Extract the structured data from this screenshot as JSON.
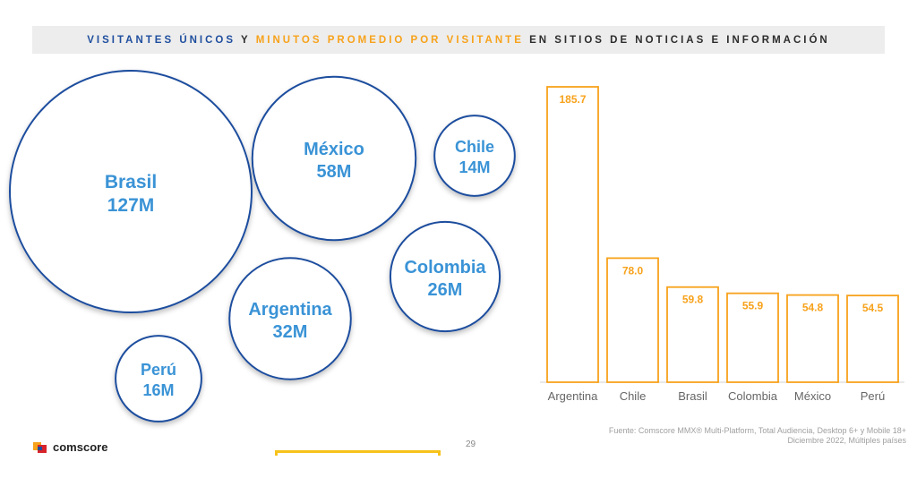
{
  "header": {
    "part1": "VISITANTES ÚNICOS",
    "part2": " Y ",
    "part3": "MINUTOS PROMEDIO POR VISITANTE",
    "part4": " EN SITIOS DE NOTICIAS E INFORMACIÓN"
  },
  "chart_data": [
    {
      "type": "bubble",
      "items": [
        {
          "label": "Brasil",
          "value_label": "127M",
          "value": 127
        },
        {
          "label": "México",
          "value_label": "58M",
          "value": 58
        },
        {
          "label": "Chile",
          "value_label": "14M",
          "value": 14
        },
        {
          "label": "Colombia",
          "value_label": "26M",
          "value": 26
        },
        {
          "label": "Argentina",
          "value_label": "32M",
          "value": 32
        },
        {
          "label": "Perú",
          "value_label": "16M",
          "value": 16
        }
      ],
      "colors": {
        "stroke": "#1f4e9e",
        "text": "#3a93d6"
      }
    },
    {
      "type": "bar",
      "categories": [
        "Argentina",
        "Chile",
        "Brasil",
        "Colombia",
        "México",
        "Perú"
      ],
      "values": [
        185.7,
        78.0,
        59.8,
        55.9,
        54.8,
        54.5
      ],
      "value_labels": [
        "185.7",
        "78.0",
        "59.8",
        "55.9",
        "54.8",
        "54.5"
      ],
      "ylim": [
        0,
        185.7
      ],
      "colors": {
        "bar": "#f7a21b",
        "label": "#f7a21b",
        "axis": "#d0d0d0",
        "category": "#666666"
      }
    }
  ],
  "source": {
    "line1": "Fuente: Comscore MMX® Multi-Platform, Total Audiencia, Desktop 6+ y Mobile 18+",
    "line2": "Diciembre 2022, Múltiples países"
  },
  "logo_text": "comscore",
  "page_number": "29"
}
